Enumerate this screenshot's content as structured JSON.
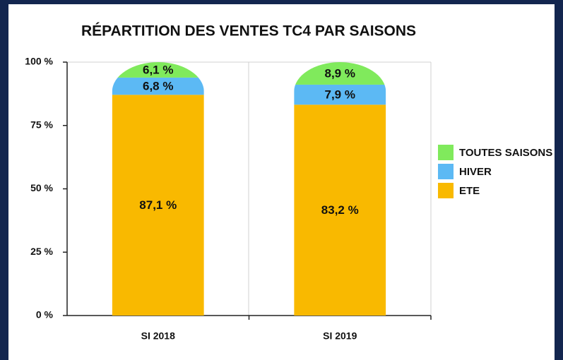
{
  "chart_data": {
    "type": "stacked_bar",
    "title": "RÉPARTITION DES VENTES TC4 PAR SAISONS",
    "categories": [
      "SI 2018",
      "SI 2019"
    ],
    "series": [
      {
        "name": "ETE",
        "color": "#f9b900",
        "values": [
          87.1,
          83.2
        ],
        "value_labels": [
          "87,1 %",
          "83,2 %"
        ]
      },
      {
        "name": "HIVER",
        "color": "#5cb9f4",
        "values": [
          6.8,
          7.9
        ],
        "value_labels": [
          "6,8 %",
          "7,9 %"
        ]
      },
      {
        "name": "TOUTES SAISONS",
        "color": "#80ea5c",
        "values": [
          6.1,
          8.9
        ],
        "value_labels": [
          "6,1 %",
          "8,9 %"
        ]
      }
    ],
    "ylim": [
      0,
      100
    ],
    "yticks": [
      {
        "value": 0,
        "label": "0 %"
      },
      {
        "value": 25,
        "label": "25 %"
      },
      {
        "value": 50,
        "label": "50 %"
      },
      {
        "value": 75,
        "label": "75 %"
      },
      {
        "value": 100,
        "label": "100 %"
      }
    ],
    "legend": "right"
  }
}
